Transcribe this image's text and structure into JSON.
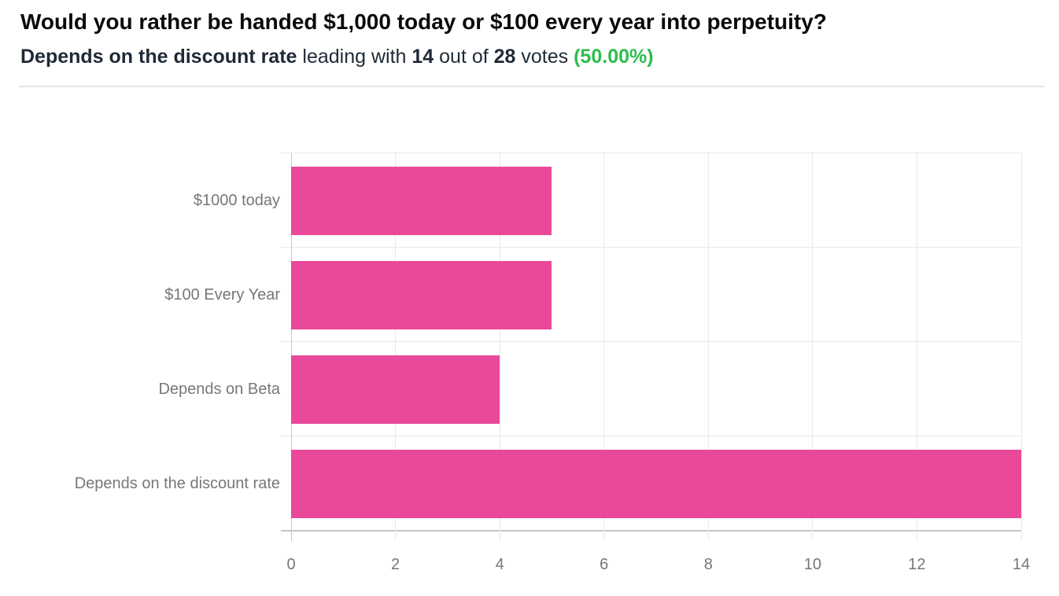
{
  "header": {
    "title": "Would you rather be handed $1,000 today or $100 every year into perpetuity?",
    "summary": {
      "leader": "Depends on the discount rate",
      "sep1": " leading with ",
      "leading_votes": "14",
      "sep2": " out of ",
      "total_votes": "28",
      "sep3": " votes ",
      "percentage": "(50.00%)"
    }
  },
  "colors": {
    "background": "#FFFFFF",
    "bar": "#EA4899",
    "percentage_green": "#2DBD4E",
    "title_text": "#0A0A0B",
    "summary_text": "#1F2A37",
    "axis_label": "#76777B",
    "gridline": "#E9E9E9",
    "axis_line": "#C6C6C8",
    "divider": "#E4E5E9"
  },
  "chart_data": {
    "type": "bar",
    "orientation": "horizontal",
    "title": "",
    "series_name": "votes",
    "categories": [
      "$1000 today",
      "$100 Every Year",
      "Depends on Beta",
      "Depends on the discount rate"
    ],
    "values": [
      5,
      5,
      4,
      14
    ],
    "xlabel": "",
    "ylabel": "",
    "xlim": [
      0,
      14
    ],
    "x_ticks": [
      0,
      2,
      4,
      6,
      8,
      10,
      12,
      14
    ],
    "grid": true,
    "legend": false,
    "bar_color": "#EA4899"
  }
}
